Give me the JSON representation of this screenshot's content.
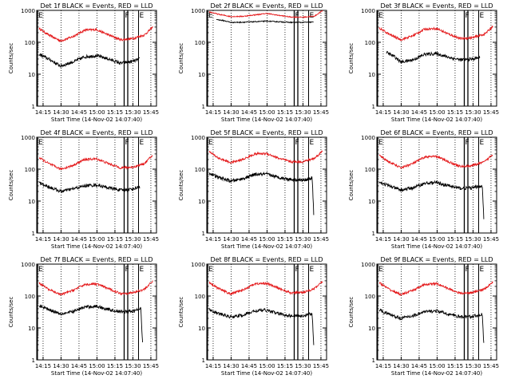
{
  "palette": {
    "events": "#000000",
    "lld": "#e41a1c",
    "axes": "#000000",
    "background": "#ffffff"
  },
  "shared": {
    "ylabel": "Counts/sec",
    "xlabel": "Start Time (14-Nov-02 14:07:40)",
    "x_tick_labels": [
      "14:15",
      "14:30",
      "14:45",
      "15:00",
      "15:15",
      "15:30",
      "15:45"
    ],
    "y_tick_labels": [
      "1",
      "10",
      "100",
      "1000"
    ],
    "marker_labels": {
      "start": "E",
      "flare": "F",
      "end": "E"
    }
  },
  "chart_data": [
    {
      "type": "line",
      "title": "Det 1f BLACK = Events, RED = LLD",
      "yscale": "log",
      "ylim": [
        1,
        1000
      ],
      "x_unit": "minutes since 14:07:40",
      "xlim": [
        0,
        100
      ],
      "markers": {
        "start": 0,
        "flare": [
          73,
          76
        ],
        "end": 85
      },
      "dotted_lines": [
        5.3,
        20.3,
        35.3,
        50.3,
        65.3,
        80.3,
        95.3
      ],
      "series": [
        {
          "name": "LLD",
          "x": [
            2,
            10,
            20,
            30,
            40,
            50,
            60,
            70,
            80,
            90,
            97
          ],
          "y": [
            270,
            170,
            110,
            150,
            240,
            250,
            170,
            120,
            130,
            170,
            300
          ],
          "noise": 0.035
        },
        {
          "name": "Events",
          "x": [
            2,
            10,
            20,
            30,
            40,
            50,
            60,
            70,
            80,
            86
          ],
          "y": [
            42,
            30,
            18,
            24,
            35,
            38,
            30,
            22,
            25,
            30
          ],
          "noise": 0.05
        }
      ]
    },
    {
      "type": "line",
      "title": "Det 2f BLACK = Events, RED = LLD",
      "yscale": "log",
      "ylim": [
        1,
        1000
      ],
      "x_unit": "minutes since 14:07:40",
      "xlim": [
        0,
        100
      ],
      "markers": {
        "start": 0,
        "flare": [
          73,
          76
        ],
        "end": 85
      },
      "dotted_lines": [
        5.3,
        20.3,
        35.3,
        50.3,
        65.3,
        80.3,
        95.3
      ],
      "series": [
        {
          "name": "LLD",
          "x": [
            2,
            10,
            20,
            30,
            40,
            50,
            60,
            70,
            80,
            90,
            97
          ],
          "y": [
            900,
            750,
            640,
            650,
            720,
            800,
            700,
            620,
            610,
            660,
            1000
          ],
          "noise": 0.015
        },
        {
          "name": "Events",
          "x": [
            8,
            15,
            20,
            30,
            40,
            50,
            60,
            70,
            80,
            89
          ],
          "y": [
            520,
            470,
            420,
            425,
            440,
            460,
            440,
            420,
            420,
            430
          ],
          "noise": 0.015
        }
      ]
    },
    {
      "type": "line",
      "title": "Det 3f BLACK = Events, RED = LLD",
      "yscale": "log",
      "ylim": [
        1,
        1000
      ],
      "x_unit": "minutes since 14:07:40",
      "xlim": [
        0,
        100
      ],
      "markers": {
        "start": 0,
        "flare": [
          73,
          76
        ],
        "end": 85
      },
      "dotted_lines": [
        5.3,
        20.3,
        35.3,
        50.3,
        65.3,
        80.3,
        95.3
      ],
      "series": [
        {
          "name": "LLD",
          "x": [
            2,
            10,
            20,
            30,
            40,
            50,
            60,
            70,
            80,
            90,
            97
          ],
          "y": [
            280,
            180,
            120,
            160,
            260,
            270,
            180,
            130,
            140,
            180,
            320
          ],
          "noise": 0.035
        },
        {
          "name": "Events",
          "x": [
            8,
            15,
            20,
            30,
            40,
            50,
            60,
            70,
            80,
            86
          ],
          "y": [
            48,
            35,
            24,
            28,
            42,
            44,
            34,
            28,
            30,
            34
          ],
          "noise": 0.05
        }
      ]
    },
    {
      "type": "line",
      "title": "Det 4f BLACK = Events, RED = LLD",
      "yscale": "log",
      "ylim": [
        1,
        1000
      ],
      "x_unit": "minutes since 14:07:40",
      "xlim": [
        0,
        100
      ],
      "markers": {
        "start": 0,
        "flare": [
          73,
          76
        ],
        "end": 85
      },
      "dotted_lines": [
        5.3,
        20.3,
        35.3,
        50.3,
        65.3,
        80.3,
        95.3
      ],
      "series": [
        {
          "name": "LLD",
          "x": [
            2,
            10,
            20,
            30,
            40,
            50,
            60,
            70,
            80,
            90,
            97
          ],
          "y": [
            230,
            150,
            100,
            130,
            200,
            210,
            150,
            110,
            115,
            150,
            280
          ],
          "noise": 0.035
        },
        {
          "name": "Events",
          "x": [
            2,
            10,
            20,
            30,
            40,
            50,
            60,
            70,
            80,
            86
          ],
          "y": [
            38,
            28,
            20,
            24,
            30,
            32,
            26,
            22,
            24,
            28
          ],
          "noise": 0.05
        }
      ]
    },
    {
      "type": "line",
      "title": "Det 5f BLACK = Events, RED = LLD",
      "yscale": "log",
      "ylim": [
        1,
        1000
      ],
      "x_unit": "minutes since 14:07:40",
      "xlim": [
        0,
        100
      ],
      "markers": {
        "start": 0,
        "flare": [
          73,
          76
        ],
        "end": 85
      },
      "dotted_lines": [
        5.3,
        20.3,
        35.3,
        50.3,
        65.3,
        80.3,
        95.3
      ],
      "series": [
        {
          "name": "LLD",
          "x": [
            2,
            10,
            20,
            30,
            40,
            50,
            60,
            70,
            80,
            90,
            97
          ],
          "y": [
            350,
            220,
            160,
            200,
            300,
            310,
            220,
            170,
            170,
            220,
            380
          ],
          "noise": 0.035
        },
        {
          "name": "Events",
          "x": [
            2,
            10,
            20,
            30,
            40,
            50,
            60,
            70,
            80,
            88,
            89,
            89.5
          ],
          "y": [
            75,
            55,
            42,
            50,
            68,
            70,
            55,
            48,
            45,
            52,
            8,
            2
          ],
          "noise": 0.05
        }
      ]
    },
    {
      "type": "line",
      "title": "Det 6f BLACK = Events, RED = LLD",
      "yscale": "log",
      "ylim": [
        1,
        1000
      ],
      "x_unit": "minutes since 14:07:40",
      "xlim": [
        0,
        100
      ],
      "markers": {
        "start": 0,
        "flare": [
          73,
          76
        ],
        "end": 85
      },
      "dotted_lines": [
        5.3,
        20.3,
        35.3,
        50.3,
        65.3,
        80.3,
        95.3
      ],
      "series": [
        {
          "name": "LLD",
          "x": [
            2,
            10,
            20,
            30,
            40,
            50,
            60,
            70,
            80,
            90,
            97
          ],
          "y": [
            270,
            170,
            110,
            150,
            240,
            250,
            170,
            120,
            130,
            170,
            300
          ],
          "noise": 0.035
        },
        {
          "name": "Events",
          "x": [
            2,
            10,
            20,
            30,
            40,
            50,
            60,
            70,
            80,
            88,
            89,
            89.5
          ],
          "y": [
            40,
            30,
            22,
            26,
            36,
            38,
            30,
            25,
            26,
            30,
            5,
            2
          ],
          "noise": 0.05
        }
      ]
    },
    {
      "type": "line",
      "title": "Det 7f BLACK = Events, RED = LLD",
      "yscale": "log",
      "ylim": [
        1,
        1000
      ],
      "x_unit": "minutes since 14:07:40",
      "xlim": [
        0,
        100
      ],
      "markers": {
        "start": 0,
        "flare": [
          73,
          76
        ],
        "end": 85
      },
      "dotted_lines": [
        5.3,
        20.3,
        35.3,
        50.3,
        65.3,
        80.3,
        95.3
      ],
      "series": [
        {
          "name": "LLD",
          "x": [
            2,
            10,
            20,
            30,
            40,
            50,
            60,
            70,
            80,
            90,
            97
          ],
          "y": [
            260,
            160,
            110,
            150,
            230,
            240,
            170,
            120,
            125,
            165,
            290
          ],
          "noise": 0.035
        },
        {
          "name": "Events",
          "x": [
            2,
            10,
            20,
            30,
            40,
            50,
            60,
            70,
            80,
            87,
            88,
            88.5
          ],
          "y": [
            50,
            38,
            28,
            32,
            45,
            48,
            38,
            32,
            33,
            40,
            6,
            3
          ],
          "noise": 0.05
        }
      ]
    },
    {
      "type": "line",
      "title": "Det 8f BLACK = Events, RED = LLD",
      "yscale": "log",
      "ylim": [
        1,
        1000
      ],
      "x_unit": "minutes since 14:07:40",
      "xlim": [
        0,
        100
      ],
      "markers": {
        "start": 0,
        "flare": [
          73,
          76
        ],
        "end": 85
      },
      "dotted_lines": [
        5.3,
        20.3,
        35.3,
        50.3,
        65.3,
        80.3,
        95.3
      ],
      "series": [
        {
          "name": "LLD",
          "x": [
            2,
            10,
            20,
            30,
            40,
            50,
            60,
            70,
            80,
            90,
            97
          ],
          "y": [
            270,
            170,
            115,
            155,
            240,
            250,
            175,
            125,
            130,
            170,
            300
          ],
          "noise": 0.035
        },
        {
          "name": "Events",
          "x": [
            2,
            10,
            20,
            30,
            40,
            50,
            60,
            70,
            80,
            88,
            89,
            89.5
          ],
          "y": [
            38,
            28,
            22,
            25,
            34,
            36,
            28,
            24,
            24,
            28,
            5,
            2
          ],
          "noise": 0.05
        }
      ]
    },
    {
      "type": "line",
      "title": "Det 9f BLACK = Events, RED = LLD",
      "yscale": "log",
      "ylim": [
        1,
        1000
      ],
      "x_unit": "minutes since 14:07:40",
      "xlim": [
        0,
        100
      ],
      "markers": {
        "start": 0,
        "flare": [
          73,
          76
        ],
        "end": 85
      },
      "dotted_lines": [
        5.3,
        20.3,
        35.3,
        50.3,
        65.3,
        80.3,
        95.3
      ],
      "series": [
        {
          "name": "LLD",
          "x": [
            2,
            10,
            20,
            30,
            40,
            50,
            60,
            70,
            80,
            90,
            97
          ],
          "y": [
            260,
            165,
            110,
            150,
            230,
            245,
            170,
            120,
            128,
            165,
            290
          ],
          "noise": 0.035
        },
        {
          "name": "Events",
          "x": [
            2,
            10,
            20,
            30,
            40,
            50,
            60,
            70,
            80,
            88,
            89,
            89.5
          ],
          "y": [
            36,
            27,
            20,
            24,
            32,
            34,
            27,
            22,
            23,
            27,
            5,
            3
          ],
          "noise": 0.05
        }
      ]
    }
  ]
}
